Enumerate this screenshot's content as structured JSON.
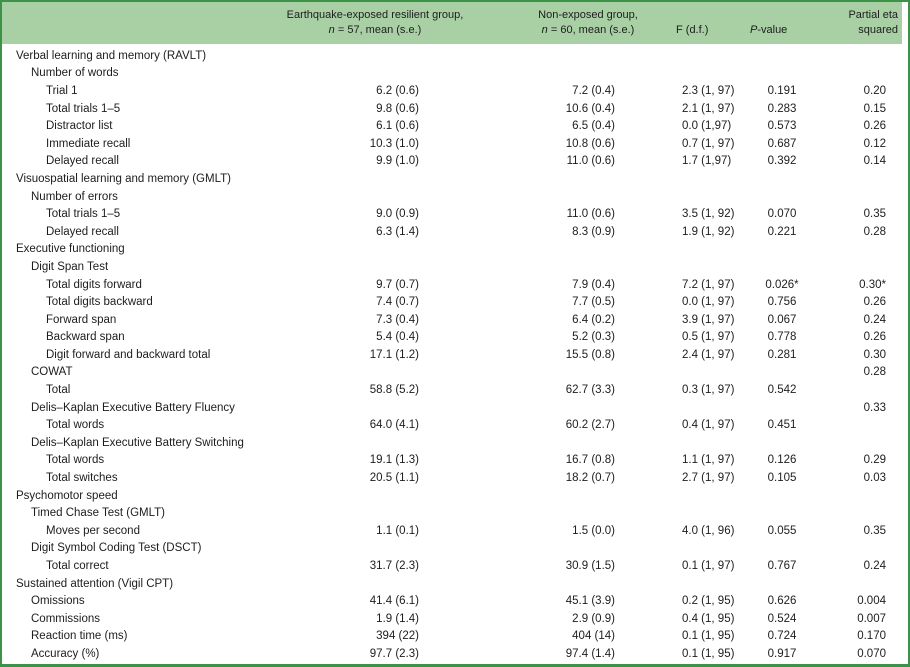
{
  "colors": {
    "border_green": "#3c9247",
    "header_bg": "#a9cfa5",
    "text": "#1d1d1d"
  },
  "table": {
    "header": {
      "group1": {
        "line1": "Earthquake-exposed resilient group,",
        "n": "n",
        "line2": " = 57, mean (s.e.)"
      },
      "group2": {
        "line1": "Non-exposed group,",
        "n": "n",
        "line2": " = 60, mean (s.e.)"
      },
      "f": "F (d.f.)",
      "p": {
        "italic": "P",
        "rest": "-value"
      },
      "eta_line1": "Partial eta",
      "eta_line2": "squared"
    },
    "rows": [
      {
        "label": "Verbal learning and memory (RAVLT)",
        "indent": 0,
        "g1": "",
        "g2": "",
        "f": "",
        "p": "",
        "eta": ""
      },
      {
        "label": "Number of words",
        "indent": 1,
        "g1": "",
        "g2": "",
        "f": "",
        "p": "",
        "eta": ""
      },
      {
        "label": "Trial 1",
        "indent": 2,
        "g1": "6.2 (0.6)",
        "g2": "7.2 (0.4)",
        "f": "2.3 (1, 97)",
        "p": "0.191",
        "eta": "0.20"
      },
      {
        "label": "Total trials 1–5",
        "indent": 2,
        "g1": "9.8 (0.6)",
        "g2": "10.6 (0.4)",
        "f": "2.1 (1, 97)",
        "p": "0.283",
        "eta": "0.15"
      },
      {
        "label": "Distractor list",
        "indent": 2,
        "g1": "6.1 (0.6)",
        "g2": "6.5 (0.4)",
        "f": "0.0 (1,97)",
        "p": "0.573",
        "eta": "0.26"
      },
      {
        "label": "Immediate recall",
        "indent": 2,
        "g1": "10.3 (1.0)",
        "g2": "10.8 (0.6)",
        "f": "0.7 (1, 97)",
        "p": "0.687",
        "eta": "0.12"
      },
      {
        "label": "Delayed recall",
        "indent": 2,
        "g1": "9.9 (1.0)",
        "g2": "11.0 (0.6)",
        "f": "1.7 (1,97)",
        "p": "0.392",
        "eta": "0.14"
      },
      {
        "label": "Visuospatial learning and memory (GMLT)",
        "indent": 0,
        "g1": "",
        "g2": "",
        "f": "",
        "p": "",
        "eta": ""
      },
      {
        "label": "Number of errors",
        "indent": 1,
        "g1": "",
        "g2": "",
        "f": "",
        "p": "",
        "eta": ""
      },
      {
        "label": "Total trials 1–5",
        "indent": 2,
        "g1": "9.0 (0.9)",
        "g2": "11.0 (0.6)",
        "f": "3.5 (1, 92)",
        "p": "0.070",
        "eta": "0.35"
      },
      {
        "label": "Delayed recall",
        "indent": 2,
        "g1": "6.3 (1.4)",
        "g2": "8.3 (0.9)",
        "f": "1.9 (1, 92)",
        "p": "0.221",
        "eta": "0.28"
      },
      {
        "label": "Executive functioning",
        "indent": 0,
        "g1": "",
        "g2": "",
        "f": "",
        "p": "",
        "eta": ""
      },
      {
        "label": "Digit Span Test",
        "indent": 1,
        "g1": "",
        "g2": "",
        "f": "",
        "p": "",
        "eta": ""
      },
      {
        "label": "Total digits forward",
        "indent": 2,
        "g1": "9.7 (0.7)",
        "g2": "7.9 (0.4)",
        "f": "7.2 (1, 97)",
        "p": "0.026*",
        "eta": "0.30*"
      },
      {
        "label": "Total digits backward",
        "indent": 2,
        "g1": "7.4 (0.7)",
        "g2": "7.7 (0.5)",
        "f": "0.0 (1, 97)",
        "p": "0.756",
        "eta": "0.26"
      },
      {
        "label": "Forward span",
        "indent": 2,
        "g1": "7.3 (0.4)",
        "g2": "6.4 (0.2)",
        "f": "3.9 (1, 97)",
        "p": "0.067",
        "eta": "0.24"
      },
      {
        "label": "Backward span",
        "indent": 2,
        "g1": "5.4 (0.4)",
        "g2": "5.2 (0.3)",
        "f": "0.5 (1, 97)",
        "p": "0.778",
        "eta": "0.26"
      },
      {
        "label": "Digit forward and backward total",
        "indent": 2,
        "g1": "17.1 (1.2)",
        "g2": "15.5 (0.8)",
        "f": "2.4 (1, 97)",
        "p": "0.281",
        "eta": "0.30"
      },
      {
        "label": "COWAT",
        "indent": 1,
        "g1": "",
        "g2": "",
        "f": "",
        "p": "",
        "eta": "0.28"
      },
      {
        "label": "Total",
        "indent": 2,
        "g1": "58.8 (5.2)",
        "g2": "62.7 (3.3)",
        "f": "0.3 (1, 97)",
        "p": "0.542",
        "eta": ""
      },
      {
        "label": "Delis–Kaplan Executive Battery Fluency",
        "indent": 1,
        "g1": "",
        "g2": "",
        "f": "",
        "p": "",
        "eta": "0.33"
      },
      {
        "label": "Total words",
        "indent": 2,
        "g1": "64.0 (4.1)",
        "g2": "60.2 (2.7)",
        "f": "0.4 (1, 97)",
        "p": "0.451",
        "eta": ""
      },
      {
        "label": "Delis–Kaplan Executive Battery Switching",
        "indent": 1,
        "g1": "",
        "g2": "",
        "f": "",
        "p": "",
        "eta": ""
      },
      {
        "label": "Total words",
        "indent": 2,
        "g1": "19.1 (1.3)",
        "g2": "16.7 (0.8)",
        "f": "1.1 (1, 97)",
        "p": "0.126",
        "eta": "0.29"
      },
      {
        "label": "Total switches",
        "indent": 2,
        "g1": "20.5 (1.1)",
        "g2": "18.2 (0.7)",
        "f": "2.7 (1, 97)",
        "p": "0.105",
        "eta": "0.03"
      },
      {
        "label": "Psychomotor speed",
        "indent": 0,
        "g1": "",
        "g2": "",
        "f": "",
        "p": "",
        "eta": ""
      },
      {
        "label": "Timed Chase Test (GMLT)",
        "indent": 1,
        "g1": "",
        "g2": "",
        "f": "",
        "p": "",
        "eta": ""
      },
      {
        "label": "Moves per second",
        "indent": 2,
        "g1": "1.1 (0.1)",
        "g2": "1.5 (0.0)",
        "f": "4.0 (1, 96)",
        "p": "0.055",
        "eta": "0.35"
      },
      {
        "label": "Digit Symbol Coding Test (DSCT)",
        "indent": 1,
        "g1": "",
        "g2": "",
        "f": "",
        "p": "",
        "eta": ""
      },
      {
        "label": "Total correct",
        "indent": 2,
        "g1": "31.7 (2.3)",
        "g2": "30.9 (1.5)",
        "f": "0.1 (1, 97)",
        "p": "0.767",
        "eta": "0.24"
      },
      {
        "label": "Sustained attention (Vigil CPT)",
        "indent": 0,
        "g1": "",
        "g2": "",
        "f": "",
        "p": "",
        "eta": ""
      },
      {
        "label": "Omissions",
        "indent": 1,
        "g1": "41.4 (6.1)",
        "g2": "45.1 (3.9)",
        "f": "0.2 (1, 95)",
        "p": "0.626",
        "eta": "0.004"
      },
      {
        "label": "Commissions",
        "indent": 1,
        "g1": "1.9 (1.4)",
        "g2": "2.9 (0.9)",
        "f": "0.4 (1, 95)",
        "p": "0.524",
        "eta": "0.007"
      },
      {
        "label": "Reaction time (ms)",
        "indent": 1,
        "g1": "394 (22)",
        "g2": "404 (14)",
        "f": "0.1 (1, 95)",
        "p": "0.724",
        "eta": "0.170"
      },
      {
        "label": "Accuracy (%)",
        "indent": 1,
        "g1": "97.7 (2.3)",
        "g2": "97.4 (1.4)",
        "f": "0.1 (1, 95)",
        "p": "0.917",
        "eta": "0.070"
      }
    ]
  }
}
